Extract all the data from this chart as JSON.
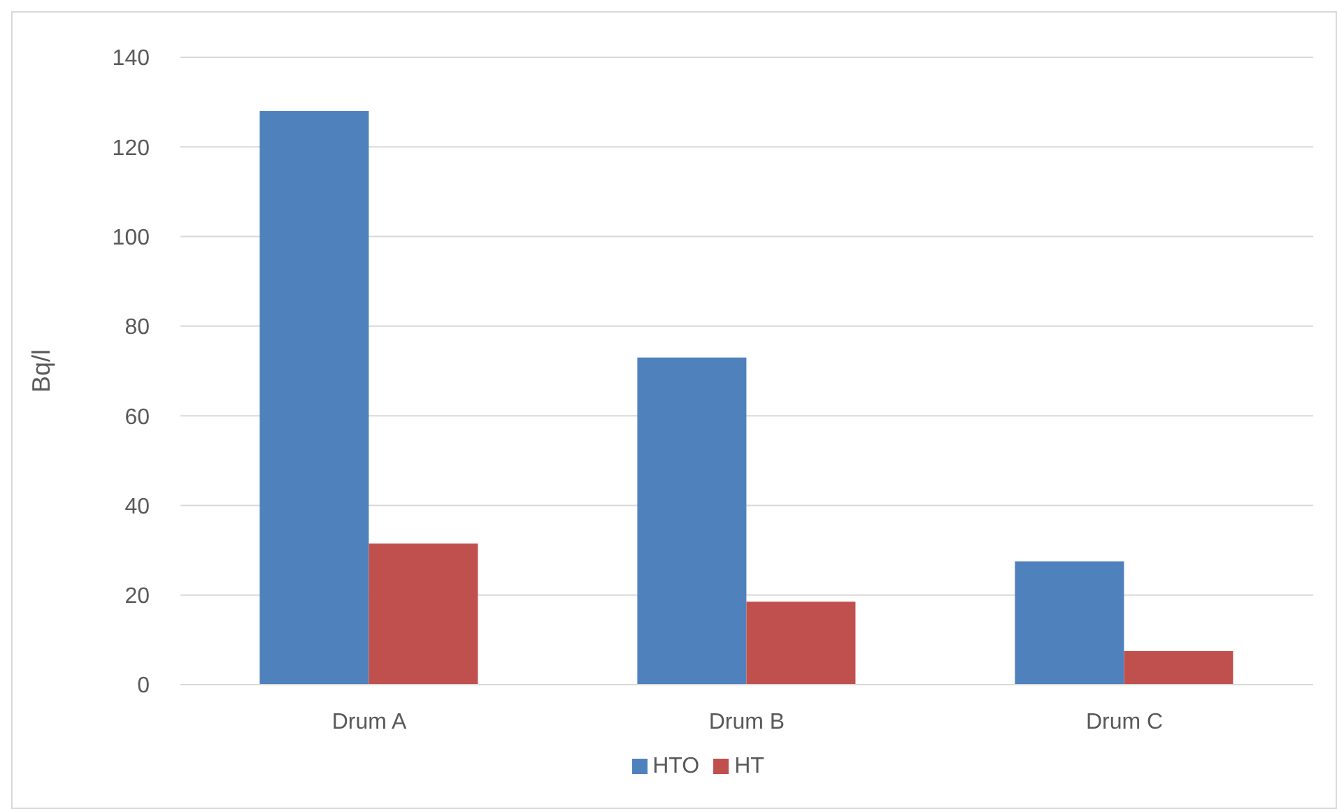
{
  "chart_data": {
    "type": "bar",
    "ylabel": "Bq/l",
    "categories": [
      "Drum A",
      "Drum B",
      "Drum C"
    ],
    "series": [
      {
        "name": "HTO",
        "color": "#4f81bd",
        "values": [
          128,
          73,
          27.5
        ]
      },
      {
        "name": "HT",
        "color": "#c0504d",
        "values": [
          31.5,
          18.5,
          7.5
        ]
      }
    ],
    "ylim": [
      0,
      140
    ],
    "yticks": [
      0,
      20,
      40,
      60,
      80,
      100,
      120,
      140
    ],
    "grid": "y",
    "legend": "bottom"
  }
}
